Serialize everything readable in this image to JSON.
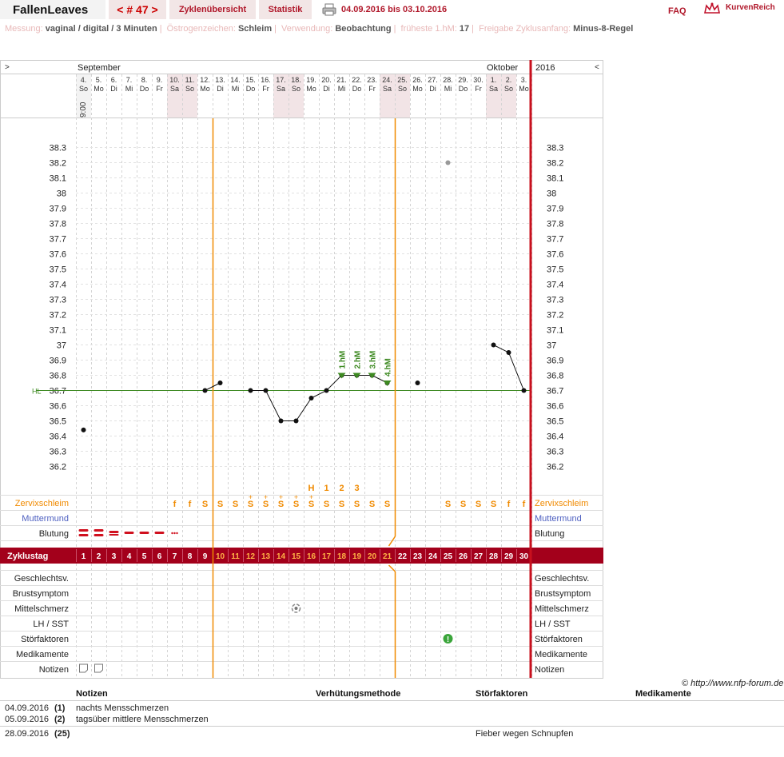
{
  "header": {
    "brand": "FallenLeaves",
    "cycle_nav": "< # 47 >",
    "tab_overview": "Zyklenübersicht",
    "tab_stats": "Statistik",
    "date_range": "04.09.2016 bis 03.10.2016",
    "faq": "FAQ",
    "logo": "KurvenReich"
  },
  "info": [
    {
      "label": "Messung:",
      "value": "vaginal / digital / 3 Minuten"
    },
    {
      "label": "Östrogenzeichen:",
      "value": "Schleim"
    },
    {
      "label": "Verwendung:",
      "value": "Beobachtung"
    },
    {
      "label": "früheste 1.hM:",
      "value": "17"
    },
    {
      "label": "Freigabe Zyklusanfang:",
      "value": "Minus-8-Regel"
    }
  ],
  "chart": {
    "nav_left": ">",
    "nav_right": "<",
    "month_left": "September",
    "month_right": "Oktober",
    "year": "2016",
    "time_label": "9:00",
    "hl_label": "HL",
    "hl_value": 36.7,
    "y_ticks": [
      "38.3",
      "38.2",
      "38.1",
      "38",
      "37.9",
      "37.8",
      "37.7",
      "37.6",
      "37.5",
      "37.4",
      "37.3",
      "37.2",
      "37.1",
      "37",
      "36.9",
      "36.8",
      "36.7",
      "36.6",
      "36.5",
      "36.4",
      "36.3",
      "36.2"
    ],
    "days": [
      {
        "d": "4.",
        "w": "So",
        "we": false
      },
      {
        "d": "5.",
        "w": "Mo",
        "we": false
      },
      {
        "d": "6.",
        "w": "Di",
        "we": false
      },
      {
        "d": "7.",
        "w": "Mi",
        "we": false
      },
      {
        "d": "8.",
        "w": "Do",
        "we": false
      },
      {
        "d": "9.",
        "w": "Fr",
        "we": false
      },
      {
        "d": "10.",
        "w": "Sa",
        "we": true
      },
      {
        "d": "11.",
        "w": "So",
        "we": true
      },
      {
        "d": "12.",
        "w": "Mo",
        "we": false
      },
      {
        "d": "13.",
        "w": "Di",
        "we": false
      },
      {
        "d": "14.",
        "w": "Mi",
        "we": false
      },
      {
        "d": "15.",
        "w": "Do",
        "we": false
      },
      {
        "d": "16.",
        "w": "Fr",
        "we": false
      },
      {
        "d": "17.",
        "w": "Sa",
        "we": true
      },
      {
        "d": "18.",
        "w": "So",
        "we": true
      },
      {
        "d": "19.",
        "w": "Mo",
        "we": false
      },
      {
        "d": "20.",
        "w": "Di",
        "we": false
      },
      {
        "d": "21.",
        "w": "Mi",
        "we": false
      },
      {
        "d": "22.",
        "w": "Do",
        "we": false
      },
      {
        "d": "23.",
        "w": "Fr",
        "we": false
      },
      {
        "d": "24.",
        "w": "Sa",
        "we": true
      },
      {
        "d": "25.",
        "w": "So",
        "we": true
      },
      {
        "d": "26.",
        "w": "Mo",
        "we": false
      },
      {
        "d": "27.",
        "w": "Di",
        "we": false
      },
      {
        "d": "28.",
        "w": "Mi",
        "we": false
      },
      {
        "d": "29.",
        "w": "Do",
        "we": false
      },
      {
        "d": "30.",
        "w": "Fr",
        "we": false
      },
      {
        "d": "1.",
        "w": "Sa",
        "we": true
      },
      {
        "d": "2.",
        "w": "So",
        "we": true
      },
      {
        "d": "3.",
        "w": "Mo",
        "we": false
      }
    ],
    "cycle_day_label": "Zyklustag",
    "row_labels": [
      "Zervixschleim",
      "Muttermund",
      "Blutung"
    ],
    "lower_labels": [
      "Geschlechtsv.",
      "Brustsymptom",
      "Mittelschmerz",
      "LH / SST",
      "Störfaktoren",
      "Medikamente",
      "Notizen"
    ],
    "mucus": [
      "",
      "",
      "",
      "",
      "",
      "",
      "f",
      "f",
      "S",
      "S",
      "S",
      "S",
      "S",
      "S",
      "S",
      "S",
      "S",
      "S",
      "S",
      "S",
      "S",
      "",
      "",
      "",
      "S",
      "S",
      "S",
      "S",
      "f",
      "f"
    ],
    "mucus_plus": [
      11,
      12,
      13,
      14,
      15
    ],
    "peak_marks": [
      {
        "day": 15,
        "label": "H"
      },
      {
        "day": 16,
        "label": "1"
      },
      {
        "day": 17,
        "label": "2"
      },
      {
        "day": 18,
        "label": "3"
      }
    ],
    "hm_labels": [
      {
        "day": 17,
        "label": "1.hM"
      },
      {
        "day": 18,
        "label": "2.hM"
      },
      {
        "day": 19,
        "label": "3.hM"
      },
      {
        "day": 20,
        "label": "4.hM"
      }
    ],
    "temps": [
      {
        "day": 1,
        "t": 36.44
      },
      {
        "day": 9,
        "t": 36.7
      },
      {
        "day": 10,
        "t": 36.75
      },
      {
        "day": 12,
        "t": 36.7
      },
      {
        "day": 13,
        "t": 36.7
      },
      {
        "day": 14,
        "t": 36.5
      },
      {
        "day": 15,
        "t": 36.5
      },
      {
        "day": 16,
        "t": 36.65
      },
      {
        "day": 17,
        "t": 36.7
      },
      {
        "day": 18,
        "t": 36.8
      },
      {
        "day": 19,
        "t": 36.8
      },
      {
        "day": 20,
        "t": 36.8
      },
      {
        "day": 21,
        "t": 36.75
      },
      {
        "day": 23,
        "t": 36.75
      },
      {
        "day": 28,
        "t": 37.0
      },
      {
        "day": 29,
        "t": 36.95
      },
      {
        "day": 30,
        "t": 36.7
      }
    ],
    "excluded_temps": [
      {
        "day": 25,
        "t": 38.2
      }
    ],
    "connected_segments": [
      [
        9,
        10
      ],
      [
        12,
        13,
        14,
        15,
        16,
        17,
        18,
        19,
        20,
        21
      ],
      [
        28,
        29,
        30
      ]
    ],
    "bleeding": [
      {
        "day": 1,
        "type": "heavy"
      },
      {
        "day": 2,
        "type": "heavy"
      },
      {
        "day": 3,
        "type": "medium"
      },
      {
        "day": 4,
        "type": "light"
      },
      {
        "day": 5,
        "type": "light"
      },
      {
        "day": 6,
        "type": "light"
      },
      {
        "day": 7,
        "type": "spot"
      }
    ],
    "orange_lines": [
      9.5,
      21.5
    ],
    "pain_day": 15,
    "disturb_day": 25,
    "notes_days": [
      1,
      2
    ],
    "colors": {
      "accent": "#a3001b",
      "orange": "#f08a00",
      "green": "#3e8a22",
      "weekend": "#f2e4e6"
    }
  },
  "copyright": "© http://www.nfp-forum.de",
  "notes": {
    "headers": [
      "Notizen",
      "Verhütungsmethode",
      "Störfaktoren",
      "Medikamente"
    ],
    "rows": [
      {
        "date": "04.09.2016",
        "n": "(1)",
        "note": "nachts Mensschmerzen",
        "disturb": ""
      },
      {
        "date": "05.09.2016",
        "n": "(2)",
        "note": "tagsüber mittlere Mensschmerzen",
        "disturb": ""
      },
      {
        "date": "28.09.2016",
        "n": "(25)",
        "note": "",
        "disturb": "Fieber wegen Schnupfen"
      }
    ]
  }
}
